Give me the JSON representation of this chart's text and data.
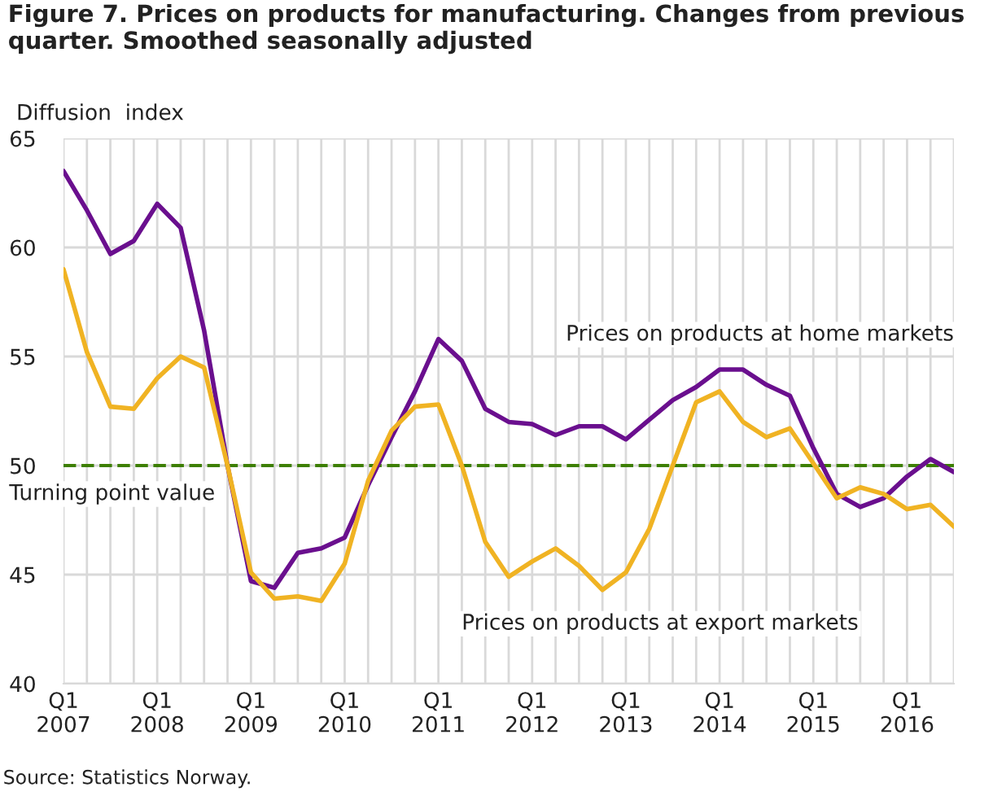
{
  "chart_data": {
    "type": "line",
    "title": "Figure 7. Prices on products for manufacturing. Changes from previous quarter. Smoothed seasonally adjusted",
    "ylabel": "Diffusion  index",
    "categories": [
      "Q1\n2007",
      null,
      null,
      null,
      "Q1\n2008",
      null,
      null,
      null,
      "Q1\n2009",
      null,
      null,
      null,
      "Q1\n2010",
      null,
      null,
      null,
      "Q1\n2011",
      null,
      null,
      null,
      "Q1\n2012",
      null,
      null,
      null,
      "Q1\n2013",
      null,
      null,
      null,
      "Q1\n2014",
      null,
      null,
      null,
      "Q1\n2015",
      null,
      null,
      null,
      "Q1\n2016",
      null,
      null
    ],
    "series": [
      {
        "name": "Prices on products at home markets",
        "color": "#6a0f8e",
        "values": [
          63.5,
          61.7,
          59.7,
          60.3,
          62.0,
          60.9,
          56.2,
          50.0,
          44.7,
          44.4,
          46.0,
          46.2,
          46.7,
          49.1,
          51.3,
          53.4,
          55.8,
          54.8,
          52.6,
          52.0,
          51.9,
          51.4,
          51.8,
          51.8,
          51.2,
          52.1,
          53.0,
          53.6,
          54.4,
          54.4,
          53.7,
          53.2,
          50.8,
          48.7,
          48.1,
          48.5,
          49.5,
          50.3,
          49.7
        ]
      },
      {
        "name": "Prices on products at export markets",
        "color": "#f0b323",
        "values": [
          59.0,
          55.2,
          52.7,
          52.6,
          54.0,
          55.0,
          54.5,
          50.0,
          45.1,
          43.9,
          44.0,
          43.8,
          45.5,
          49.3,
          51.6,
          52.7,
          52.8,
          50.0,
          46.5,
          44.9,
          45.6,
          46.2,
          45.4,
          44.3,
          45.1,
          47.1,
          50.0,
          52.9,
          53.4,
          52.0,
          51.3,
          51.7,
          50.1,
          48.5,
          49.0,
          48.7,
          48.0,
          48.2,
          47.2
        ]
      }
    ],
    "ylim": [
      40,
      65
    ],
    "yticks": [
      40,
      45,
      50,
      55,
      60,
      65
    ],
    "ref_lines": [
      {
        "axis": "y",
        "value": 50,
        "label": "Turning point value",
        "color": "#3d7f00",
        "line_style": "dashed"
      }
    ],
    "annotations": [
      "Source: Statistics Norway."
    ],
    "grid": true,
    "legend": false,
    "marker": "none",
    "line_style": "solid"
  }
}
